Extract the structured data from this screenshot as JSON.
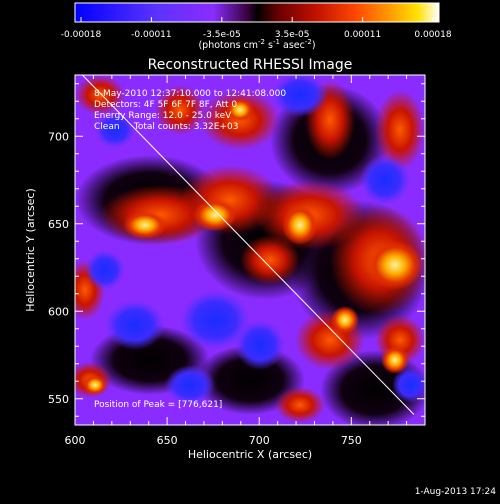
{
  "colorbar": {
    "ticks": [
      "-0.00018",
      "-0.00011",
      "-3.5e-05",
      "3.5e-05",
      "0.00011",
      "0.00018"
    ],
    "unit_parts": [
      "(photons cm",
      "-2",
      " s",
      "-1",
      " asec",
      "-2",
      ")"
    ],
    "stops": [
      {
        "offset": 0.0,
        "color": "#0000ff"
      },
      {
        "offset": 0.22,
        "color": "#5a32ff"
      },
      {
        "offset": 0.38,
        "color": "#8a2cff"
      },
      {
        "offset": 0.48,
        "color": "#300030"
      },
      {
        "offset": 0.5,
        "color": "#000000"
      },
      {
        "offset": 0.56,
        "color": "#6a0000"
      },
      {
        "offset": 0.66,
        "color": "#c01000"
      },
      {
        "offset": 0.77,
        "color": "#ff4600"
      },
      {
        "offset": 0.87,
        "color": "#ffa000"
      },
      {
        "offset": 0.94,
        "color": "#ffe000"
      },
      {
        "offset": 1.0,
        "color": "#ffffff"
      }
    ]
  },
  "plot": {
    "title": "Reconstructed RHESSI Image",
    "xlabel": "Heliocentric X (arcsec)",
    "ylabel": "Heliocentric Y (arcsec)",
    "xlim": [
      600,
      790
    ],
    "ylim": [
      535,
      735
    ],
    "xticks": [
      600,
      650,
      700,
      750
    ],
    "yticks": [
      550,
      600,
      650,
      700
    ],
    "info_lines": [
      "8-May-2010 12:37:10.000 to 12:41:08.000",
      "Detectors: 4F 5F 6F 7F 8F, Att 0",
      "Energy Range: 12.0 - 25.0 keV",
      "Clean     Total counts: 3.32E+03"
    ],
    "peak_text": "Position of Peak = [776,621]",
    "limb_line": [
      [
        604,
        735
      ],
      [
        784,
        541
      ]
    ]
  },
  "footer": {
    "date": "1-Aug-2013 17:24"
  }
}
